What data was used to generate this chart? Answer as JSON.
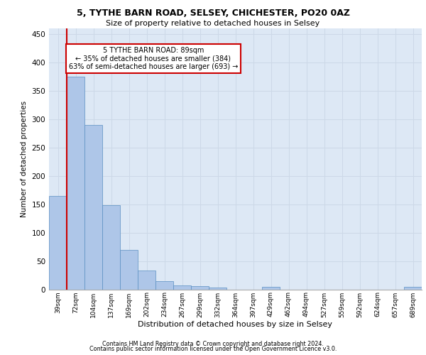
{
  "title": "5, TYTHE BARN ROAD, SELSEY, CHICHESTER, PO20 0AZ",
  "subtitle": "Size of property relative to detached houses in Selsey",
  "xlabel": "Distribution of detached houses by size in Selsey",
  "ylabel": "Number of detached properties",
  "bar_labels": [
    "39sqm",
    "72sqm",
    "104sqm",
    "137sqm",
    "169sqm",
    "202sqm",
    "234sqm",
    "267sqm",
    "299sqm",
    "332sqm",
    "364sqm",
    "397sqm",
    "429sqm",
    "462sqm",
    "494sqm",
    "527sqm",
    "559sqm",
    "592sqm",
    "624sqm",
    "657sqm",
    "689sqm"
  ],
  "bar_values": [
    165,
    375,
    290,
    148,
    70,
    33,
    14,
    7,
    6,
    3,
    0,
    0,
    5,
    0,
    0,
    0,
    0,
    0,
    0,
    0,
    4
  ],
  "bar_color": "#aec6e8",
  "bar_edgecolor": "#5a8fc2",
  "annotation_line1": "5 TYTHE BARN ROAD: 89sqm",
  "annotation_line2": "← 35% of detached houses are smaller (384)",
  "annotation_line3": "63% of semi-detached houses are larger (693) →",
  "annotation_box_color": "#ffffff",
  "annotation_box_edgecolor": "#cc0000",
  "vline_color": "#cc0000",
  "grid_color": "#cdd9e8",
  "background_color": "#dde8f5",
  "footer_line1": "Contains HM Land Registry data © Crown copyright and database right 2024.",
  "footer_line2": "Contains public sector information licensed under the Open Government Licence v3.0.",
  "ylim": [
    0,
    460
  ],
  "yticks": [
    0,
    50,
    100,
    150,
    200,
    250,
    300,
    350,
    400,
    450
  ],
  "vline_bar_index": 1
}
